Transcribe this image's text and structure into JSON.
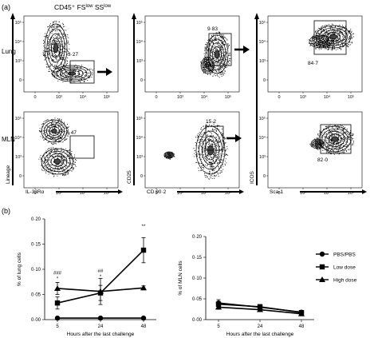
{
  "figure": {
    "panel_a_label": "(a)",
    "panel_b_label": "(b)",
    "gate_header": "CD45⁺ FS",
    "gate_header_sup1": "low",
    "gate_header_mid": " SS",
    "gate_header_sup2": "low",
    "row_labels": [
      "Lung",
      "MLN"
    ],
    "flow_columns": [
      {
        "xlabel": "IL-33Rα",
        "ylabel": "Lineage",
        "gate_values": [
          "3·27",
          "0·47"
        ]
      },
      {
        "xlabel": "CD 90·2",
        "ylabel": "CD25",
        "gate_values": [
          "9·83",
          "15·2"
        ]
      },
      {
        "xlabel": "Sca-1",
        "ylabel": "ICOS",
        "gate_values": [
          "84·7",
          "82·0"
        ]
      }
    ],
    "flow_ticks_x": [
      "0",
      "10³",
      "10⁴",
      "10⁵"
    ],
    "flow_ticks_y": [
      "10⁵",
      "10⁴",
      "10³",
      "0"
    ],
    "flow_ticks_x_col3": [
      "0",
      "10³",
      "10⁴",
      "10⁵"
    ],
    "significance": {
      "h5": [
        "###",
        "*"
      ],
      "h24": [
        "##",
        "*"
      ],
      "h48": [
        "**"
      ]
    },
    "colors": {
      "ink": "#000000",
      "background": "#ffffff"
    }
  },
  "chart_data": [
    {
      "type": "line",
      "xlabel": "Hours after the last challenge",
      "ylabel": "% of lung cells",
      "x": [
        5,
        24,
        48
      ],
      "xticks": [
        "5",
        "24",
        "48"
      ],
      "yticks": [
        "0·00",
        "0·05",
        "0·10",
        "0·15",
        "0·20"
      ],
      "ylim": [
        0,
        0.2
      ],
      "series": [
        {
          "name": "PBS/PBS",
          "marker": "circle",
          "values": [
            0.003,
            0.003,
            0.003
          ],
          "err": [
            0.002,
            0.002,
            0.002
          ]
        },
        {
          "name": "Low dose",
          "marker": "square",
          "values": [
            0.033,
            0.053,
            0.138
          ],
          "err": [
            0.012,
            0.015,
            0.025
          ]
        },
        {
          "name": "High dose",
          "marker": "triangle",
          "values": [
            0.062,
            0.056,
            0.063
          ],
          "err": [
            0.012,
            0.026,
            0.004
          ]
        }
      ],
      "legend": "right"
    },
    {
      "type": "line",
      "xlabel": "Hours after the last challenge",
      "ylabel": "% of MLN cells",
      "x": [
        5,
        24,
        48
      ],
      "xticks": [
        "5",
        "24",
        "48"
      ],
      "yticks": [
        "0·00",
        "0·05",
        "0·10",
        "0·15",
        "0·20"
      ],
      "ylim": [
        0,
        0.2
      ],
      "series": [
        {
          "name": "PBS/PBS",
          "marker": "circle",
          "values": [
            0.04,
            0.03,
            0.018
          ],
          "err": [
            0.008,
            0.006,
            0.004
          ]
        },
        {
          "name": "Low dose",
          "marker": "square",
          "values": [
            0.037,
            0.031,
            0.017
          ],
          "err": [
            0.006,
            0.005,
            0.004
          ]
        },
        {
          "name": "High dose",
          "marker": "triangle",
          "values": [
            0.03,
            0.024,
            0.014
          ],
          "err": [
            0.005,
            0.004,
            0.004
          ]
        }
      ]
    }
  ]
}
